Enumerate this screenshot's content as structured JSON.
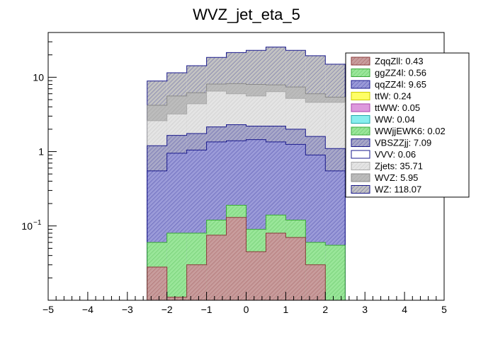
{
  "chart_data": {
    "type": "histogram",
    "stacked": true,
    "title": "WVZ_jet_eta_5",
    "xlabel": "",
    "ylabel": "",
    "xlim": [
      -5,
      5
    ],
    "ylim": [
      0.01,
      40
    ],
    "yscale": "log",
    "x_tick_labels": [
      "−5",
      "−4",
      "−3",
      "−2",
      "−1",
      "0",
      "1",
      "2",
      "3",
      "4",
      "5"
    ],
    "y_tick_labels": [
      {
        "value": 0.1,
        "mantissa": "10",
        "exp": "−1"
      },
      {
        "value": 1,
        "mantissa": "1",
        "exp": ""
      },
      {
        "value": 10,
        "mantissa": "10",
        "exp": ""
      }
    ],
    "legend_position": "top-right",
    "bin_edges": [
      -2.5,
      -2.0,
      -1.5,
      -1.0,
      -0.5,
      0.0,
      0.5,
      1.0,
      1.5,
      2.0,
      2.5
    ],
    "stack_cumulative_tops": {
      "ZqqZll": [
        0.028,
        0.011,
        0.03,
        0.075,
        0.13,
        0.045,
        0.08,
        0.07,
        0.03,
        0.01
      ],
      "ggZZ4l": [
        0.06,
        0.08,
        0.08,
        0.12,
        0.19,
        0.09,
        0.14,
        0.12,
        0.06,
        0.055
      ],
      "qqZZ4l": [
        0.55,
        0.95,
        1.05,
        1.35,
        1.4,
        1.45,
        1.35,
        1.25,
        0.9,
        0.55
      ],
      "VBSZZjj": [
        1.2,
        1.65,
        1.75,
        2.15,
        2.3,
        2.2,
        2.2,
        2.0,
        1.6,
        1.1
      ],
      "Zjets": [
        2.6,
        3.2,
        4.4,
        6.5,
        6.0,
        5.6,
        6.4,
        5.2,
        4.6,
        4.6
      ],
      "WVZ": [
        4.2,
        5.6,
        6.2,
        8.1,
        8.2,
        8.0,
        7.9,
        7.4,
        6.0,
        5.4
      ],
      "WZ": [
        8.9,
        11.5,
        14.3,
        18.5,
        21.5,
        23.0,
        25.5,
        23.0,
        19.5,
        15.0
      ]
    },
    "series": [
      {
        "name": "ZqqZll: 0.43",
        "fill": "#c89c9c",
        "line": "#8a3a3a",
        "hatch": true,
        "drawn": true
      },
      {
        "name": "ggZZ4l: 0.56",
        "fill": "#99e699",
        "line": "#3aa83a",
        "hatch": true,
        "drawn": true
      },
      {
        "name": "qqZZ4l: 9.65",
        "fill": "#9a9ad8",
        "line": "#1a1a8c",
        "hatch": true,
        "drawn": true
      },
      {
        "name": "ttW: 0.24",
        "fill": "#ffff66",
        "line": "#cccc00",
        "hatch": false,
        "drawn": false
      },
      {
        "name": "ttWW: 0.05",
        "fill": "#dd99dd",
        "line": "#aa44aa",
        "hatch": false,
        "drawn": false
      },
      {
        "name": "WW: 0.04",
        "fill": "#88eeee",
        "line": "#22aaaa",
        "hatch": false,
        "drawn": false
      },
      {
        "name": "WWjjEWK6: 0.02",
        "fill": "#99e699",
        "line": "#3aa83a",
        "hatch": true,
        "drawn": false
      },
      {
        "name": "VBSZZjj: 7.09",
        "fill": "#a8a8c8",
        "line": "#1a1a8c",
        "hatch": true,
        "drawn": true
      },
      {
        "name": "VVV: 0.06",
        "fill": "#ffffff",
        "line": "#1a1a8c",
        "hatch": false,
        "drawn": false
      },
      {
        "name": "Zjets: 35.71",
        "fill": "#e4e4e4",
        "line": "#aaaaaa",
        "hatch": true,
        "drawn": true
      },
      {
        "name": "WVZ: 5.95",
        "fill": "#bcbcbc",
        "line": "#8a8a8a",
        "hatch": true,
        "drawn": true
      },
      {
        "name": "WZ: 118.07",
        "fill": "#c2c2c2",
        "line": "#1a1a8c",
        "hatch": true,
        "drawn": true
      }
    ]
  }
}
